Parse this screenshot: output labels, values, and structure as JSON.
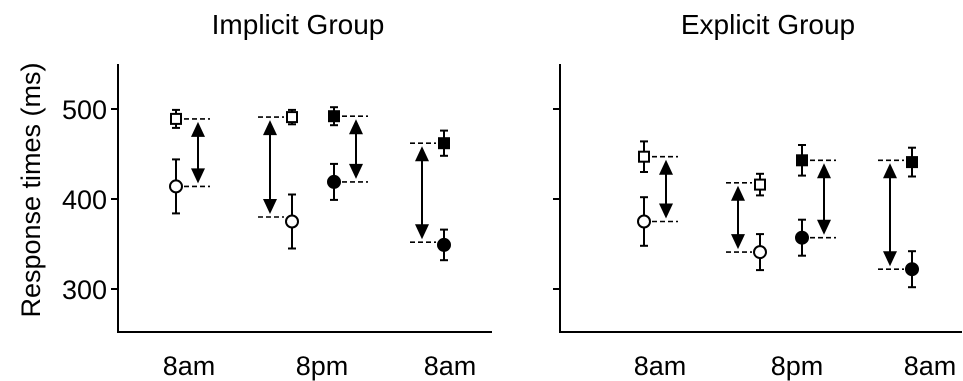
{
  "chart_data": {
    "type": "scatter",
    "ylabel": "Response times (ms)",
    "ylim": [
      250,
      550
    ],
    "yticks": [
      300,
      400,
      500
    ],
    "x_categories": [
      "8am",
      "8pm",
      "8am"
    ],
    "panels": [
      {
        "title": "Implicit Group",
        "points": [
          {
            "session": 0,
            "shape": "square",
            "filled": false,
            "y": 489,
            "err": 10
          },
          {
            "session": 0,
            "shape": "circle",
            "filled": false,
            "y": 414,
            "err": 30
          },
          {
            "session": 1,
            "shape": "square",
            "filled": false,
            "y": 491,
            "err": 8
          },
          {
            "session": 1,
            "shape": "circle",
            "filled": false,
            "y": 375,
            "err": 30
          },
          {
            "session": 1,
            "shape": "square",
            "filled": true,
            "y": 492,
            "err": 10
          },
          {
            "session": 1,
            "shape": "circle",
            "filled": true,
            "y": 419,
            "err": 20
          },
          {
            "session": 2,
            "shape": "square",
            "filled": true,
            "y": 462,
            "err": 14
          },
          {
            "session": 2,
            "shape": "circle",
            "filled": true,
            "y": 349,
            "err": 17
          }
        ],
        "arrows": [
          {
            "session": 0,
            "pos": "after",
            "ref": 0,
            "top": 489,
            "bottom": 414
          },
          {
            "session": 1,
            "pos": "before",
            "ref": 2,
            "top": 491,
            "bottom": 380
          },
          {
            "session": 1,
            "pos": "after",
            "ref": 4,
            "top": 492,
            "bottom": 419
          },
          {
            "session": 2,
            "pos": "before",
            "ref": 6,
            "top": 462,
            "bottom": 352
          }
        ]
      },
      {
        "title": "Explicit Group",
        "points": [
          {
            "session": 0,
            "shape": "square",
            "filled": false,
            "y": 447,
            "err": 17
          },
          {
            "session": 0,
            "shape": "circle",
            "filled": false,
            "y": 375,
            "err": 27
          },
          {
            "session": 1,
            "shape": "square",
            "filled": false,
            "y": 416,
            "err": 12
          },
          {
            "session": 1,
            "shape": "circle",
            "filled": false,
            "y": 341,
            "err": 20
          },
          {
            "session": 1,
            "shape": "square",
            "filled": true,
            "y": 443,
            "err": 17
          },
          {
            "session": 1,
            "shape": "circle",
            "filled": true,
            "y": 357,
            "err": 20
          },
          {
            "session": 2,
            "shape": "square",
            "filled": true,
            "y": 441,
            "err": 16
          },
          {
            "session": 2,
            "shape": "circle",
            "filled": true,
            "y": 322,
            "err": 20
          }
        ],
        "arrows": [
          {
            "session": 0,
            "pos": "after",
            "ref": 0,
            "top": 447,
            "bottom": 375
          },
          {
            "session": 1,
            "pos": "before",
            "ref": 2,
            "top": 418,
            "bottom": 341
          },
          {
            "session": 1,
            "pos": "after",
            "ref": 4,
            "top": 443,
            "bottom": 357
          },
          {
            "session": 2,
            "pos": "before",
            "ref": 6,
            "top": 443,
            "bottom": 322
          }
        ]
      }
    ]
  }
}
